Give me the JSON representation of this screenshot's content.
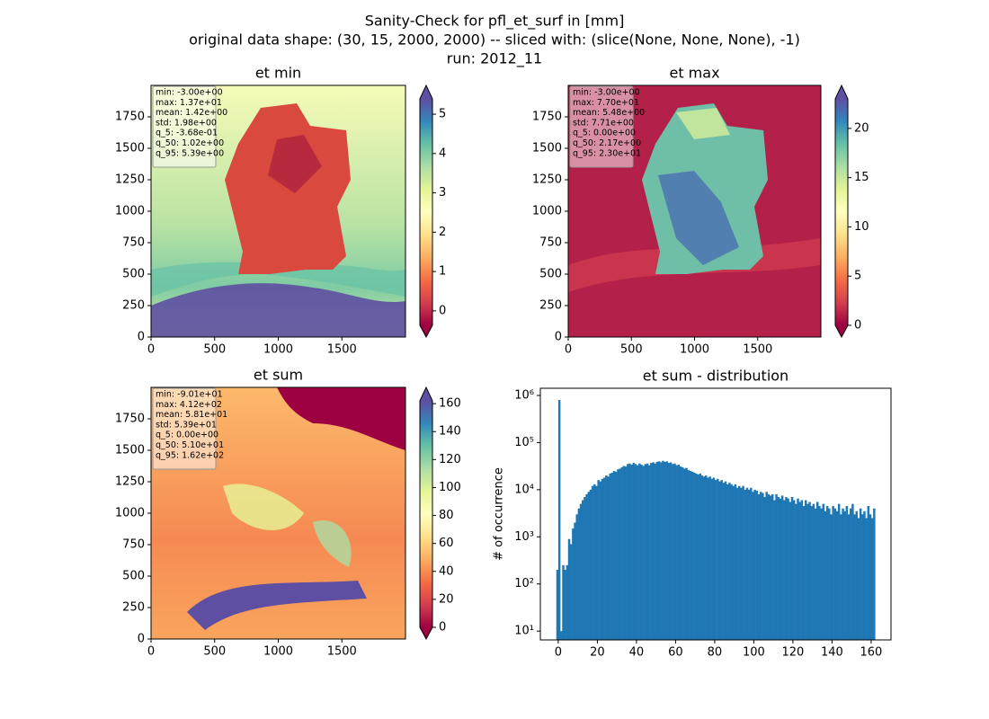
{
  "suptitle": [
    "Sanity-Check for pfl_et_surf in [mm]",
    "original data shape: (30, 15, 2000, 2000) -- sliced with: (slice(None, None, None), -1)",
    "run: 2012_11"
  ],
  "colormap": [
    "#9e0142",
    "#d53e4f",
    "#f46d43",
    "#fdae61",
    "#fee08b",
    "#ffffbf",
    "#e6f598",
    "#abdda4",
    "#66c2a5",
    "#3288bd",
    "#5e4fa2"
  ],
  "chart_data": [
    {
      "type": "heatmap",
      "title": "et min",
      "xlim": [
        0,
        2000
      ],
      "ylim": [
        0,
        2000
      ],
      "xticks": [
        0,
        500,
        1000,
        1500
      ],
      "yticks": [
        0,
        250,
        500,
        750,
        1000,
        1250,
        1500,
        1750
      ],
      "clim": [
        -0.368,
        5.39
      ],
      "cticks": [
        0,
        1,
        2,
        3,
        4,
        5
      ],
      "stats": [
        "min: -3.00e+00",
        "max: 1.37e+01",
        "mean: 1.42e+00",
        "std: 1.98e+00",
        "q_5: -3.68e-01",
        "q_50: 1.02e+00",
        "q_95: 5.39e+00"
      ]
    },
    {
      "type": "heatmap",
      "title": "et max",
      "xlim": [
        0,
        2000
      ],
      "ylim": [
        0,
        2000
      ],
      "xticks": [
        0,
        500,
        1000,
        1500
      ],
      "yticks": [
        0,
        250,
        500,
        750,
        1000,
        1250,
        1500,
        1750
      ],
      "clim": [
        0,
        23
      ],
      "cticks": [
        0,
        5,
        10,
        15,
        20
      ],
      "stats": [
        "min: -3.00e+00",
        "max: 7.70e+01",
        "mean: 5.48e+00",
        "std: 7.71e+00",
        "q_5: 0.00e+00",
        "q_50: 2.17e+00",
        "q_95: 2.30e+01"
      ]
    },
    {
      "type": "heatmap",
      "title": "et sum",
      "xlim": [
        0,
        2000
      ],
      "ylim": [
        0,
        2000
      ],
      "xticks": [
        0,
        500,
        1000,
        1500
      ],
      "yticks": [
        0,
        250,
        500,
        750,
        1000,
        1250,
        1500,
        1750
      ],
      "clim": [
        0,
        162
      ],
      "cticks": [
        0,
        20,
        40,
        60,
        80,
        100,
        120,
        140,
        160
      ],
      "stats": [
        "min: -9.01e+01",
        "max: 4.12e+02",
        "mean: 5.81e+01",
        "std: 5.39e+01",
        "q_5: 0.00e+00",
        "q_50: 5.10e+01",
        "q_95: 1.62e+02"
      ]
    },
    {
      "type": "hist",
      "title": "et sum - distribution",
      "ylabel": "# of occurrence",
      "color": "#1f77b4",
      "log_y": true,
      "xlim": [
        -9.15,
        170.15
      ],
      "ylim": [
        6.5,
        1420000
      ],
      "xticks": [
        0,
        20,
        40,
        60,
        80,
        100,
        120,
        140,
        160
      ],
      "yticks": [
        {
          "value": 10,
          "label": "10¹"
        },
        {
          "value": 100,
          "label": "10²"
        },
        {
          "value": 1000,
          "label": "10³"
        },
        {
          "value": 10000,
          "label": "10⁴"
        },
        {
          "value": 100000,
          "label": "10⁵"
        },
        {
          "value": 1000000,
          "label": "10⁶"
        }
      ],
      "bins": [
        -1,
        0,
        1,
        2,
        3,
        4,
        5,
        6,
        7,
        8,
        9,
        10,
        11,
        12,
        13,
        14,
        15,
        16,
        17,
        18,
        19,
        20,
        21,
        22,
        23,
        24,
        25,
        26,
        27,
        28,
        29,
        30,
        31,
        32,
        33,
        34,
        35,
        36,
        37,
        38,
        39,
        40,
        41,
        42,
        43,
        44,
        45,
        46,
        47,
        48,
        49,
        50,
        51,
        52,
        53,
        54,
        55,
        56,
        57,
        58,
        59,
        60,
        61,
        62,
        63,
        64,
        65,
        66,
        67,
        68,
        69,
        70,
        71,
        72,
        73,
        74,
        75,
        76,
        77,
        78,
        79,
        80,
        81,
        82,
        83,
        84,
        85,
        86,
        87,
        88,
        89,
        90,
        91,
        92,
        93,
        94,
        95,
        96,
        97,
        98,
        99,
        100,
        101,
        102,
        103,
        104,
        105,
        106,
        107,
        108,
        109,
        110,
        111,
        112,
        113,
        114,
        115,
        116,
        117,
        118,
        119,
        120,
        121,
        122,
        123,
        124,
        125,
        126,
        127,
        128,
        129,
        130,
        131,
        132,
        133,
        134,
        135,
        136,
        137,
        138,
        139,
        140,
        141,
        142,
        143,
        144,
        145,
        146,
        147,
        148,
        149,
        150,
        151,
        152,
        153,
        154,
        155,
        156,
        157,
        158,
        159,
        160,
        161,
        162
      ],
      "counts": [
        200,
        800000,
        10,
        250,
        200,
        250,
        900,
        700,
        1500,
        2000,
        3000,
        4000,
        5000,
        6000,
        7000,
        8000,
        9000,
        10000,
        12000,
        13000,
        12000,
        16000,
        15000,
        17000,
        18000,
        20000,
        19000,
        22000,
        23000,
        25000,
        24000,
        27000,
        28000,
        30000,
        32000,
        31000,
        35000,
        36000,
        34000,
        37000,
        35000,
        33000,
        36000,
        34000,
        32000,
        35000,
        36000,
        33000,
        37000,
        38000,
        36000,
        39000,
        40000,
        38000,
        41000,
        39000,
        40000,
        37000,
        38000,
        35000,
        36000,
        33000,
        34000,
        31000,
        30000,
        28000,
        29000,
        26000,
        25000,
        24000,
        23000,
        22000,
        21000,
        22000,
        20000,
        19000,
        20000,
        18000,
        19000,
        17000,
        18000,
        16000,
        17000,
        15000,
        16000,
        14000,
        15000,
        13000,
        14000,
        13000,
        12000,
        13000,
        11000,
        12000,
        11000,
        12000,
        10000,
        11000,
        10000,
        11000,
        9000,
        10000,
        9500,
        8000,
        9000,
        8500,
        7000,
        9000,
        8000,
        7500,
        8000,
        6000,
        8000,
        7000,
        6500,
        7500,
        6000,
        7000,
        6500,
        5500,
        7000,
        6000,
        5000,
        6500,
        5500,
        6000,
        4500,
        6000,
        5000,
        5500,
        4500,
        5000,
        4000,
        5500,
        4500,
        4000,
        5000,
        3500,
        4500,
        4000,
        3000,
        4500,
        4000,
        3500,
        5000,
        3000,
        4000,
        3500,
        4500,
        3000,
        4000,
        5000,
        3000,
        3500,
        2500,
        4000,
        3000,
        3500,
        2500,
        4500,
        3000,
        2500,
        4000
      ]
    }
  ]
}
